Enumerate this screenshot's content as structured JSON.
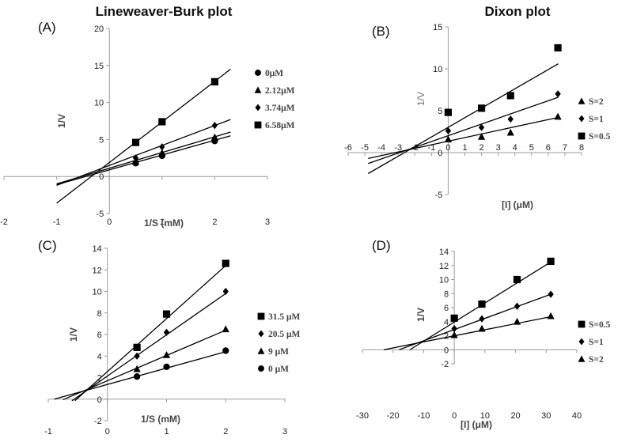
{
  "titles": {
    "left": "Lineweaver-Burk plot",
    "right": "Dixon plot"
  },
  "chart_data": [
    {
      "id": "A",
      "tag": "(A)",
      "type": "scatter",
      "xlabel": "1/S (mM)",
      "ylabel": "1/V",
      "ylabel_style": "bold",
      "xlim": [
        -2,
        3
      ],
      "ylim": [
        -5,
        20
      ],
      "xticks": [
        -2,
        -1,
        0,
        1,
        2,
        3
      ],
      "yticks": [
        -5,
        0,
        5,
        10,
        15,
        20
      ],
      "legend_position": "right",
      "series": [
        {
          "name": "0μM",
          "marker": "circle",
          "x": [
            0.5,
            1,
            2
          ],
          "y": [
            1.8,
            2.8,
            4.8
          ],
          "line": {
            "x": [
              -1,
              2.3
            ],
            "y": [
              -1.1,
              5.5
            ]
          }
        },
        {
          "name": "2.12μM",
          "marker": "triangle",
          "x": [
            0.5,
            1,
            2
          ],
          "y": [
            2.0,
            3.2,
            5.3
          ],
          "line": {
            "x": [
              -1,
              2.3
            ],
            "y": [
              -1.0,
              6.0
            ]
          }
        },
        {
          "name": "3.74μM",
          "marker": "diamond",
          "x": [
            0.5,
            1,
            2
          ],
          "y": [
            2.5,
            4.0,
            6.9
          ],
          "line": {
            "x": [
              -1,
              2.3
            ],
            "y": [
              -1.2,
              7.7
            ]
          }
        },
        {
          "name": "6.58μM",
          "marker": "square",
          "x": [
            0.5,
            1,
            2
          ],
          "y": [
            4.6,
            7.4,
            12.8
          ],
          "line": {
            "x": [
              -1,
              2.3
            ],
            "y": [
              -3.6,
              14.5
            ]
          }
        }
      ]
    },
    {
      "id": "B",
      "tag": "(B)",
      "type": "scatter",
      "xlabel": "[I] (μM)",
      "ylabel": "1/V",
      "ylabel_style": "light",
      "xlim": [
        -6,
        8
      ],
      "ylim": [
        -5,
        15
      ],
      "xticks": [
        -6,
        -5,
        -4,
        -3,
        -2,
        -1,
        0,
        1,
        2,
        3,
        4,
        5,
        6,
        7,
        8
      ],
      "yticks": [
        -5,
        0,
        5,
        10,
        15
      ],
      "legend_position": "right",
      "series": [
        {
          "name": "S=2",
          "marker": "triangle",
          "x": [
            0,
            2,
            3.74,
            6.58
          ],
          "y": [
            1.6,
            1.9,
            2.4,
            4.3
          ],
          "line": {
            "x": [
              -4.8,
              6.6
            ],
            "y": [
              -0.7,
              4.2
            ]
          }
        },
        {
          "name": "S=1",
          "marker": "diamond",
          "x": [
            0,
            2,
            3.74,
            6.58
          ],
          "y": [
            2.6,
            3.0,
            4.0,
            7.0
          ],
          "line": {
            "x": [
              -4.8,
              6.6
            ],
            "y": [
              -1.3,
              6.6
            ]
          }
        },
        {
          "name": "S=0.5",
          "marker": "square",
          "x": [
            0,
            2,
            3.74,
            6.58
          ],
          "y": [
            4.8,
            5.3,
            6.8,
            12.5
          ],
          "line": {
            "x": [
              -4.8,
              6.6
            ],
            "y": [
              -2.5,
              10.6
            ]
          }
        }
      ]
    },
    {
      "id": "C",
      "tag": "(C)",
      "type": "scatter",
      "xlabel": "1/S (mM)",
      "ylabel": "1/V",
      "ylabel_style": "bold",
      "xlim": [
        -1,
        3
      ],
      "ylim": [
        -2,
        14
      ],
      "xticks": [
        -1,
        0,
        1,
        2,
        3
      ],
      "yticks": [
        -2,
        0,
        2,
        4,
        6,
        8,
        10,
        12,
        14
      ],
      "legend_position": "right",
      "series": [
        {
          "name": "31.5 μM",
          "marker": "square",
          "x": [
            0.5,
            1,
            2
          ],
          "y": [
            4.8,
            7.9,
            12.6
          ],
          "line": {
            "x": [
              -0.55,
              2
            ],
            "y": [
              -0.15,
              12.4
            ]
          }
        },
        {
          "name": "20.5 μM",
          "marker": "diamond",
          "x": [
            0.5,
            1,
            2
          ],
          "y": [
            4.0,
            6.2,
            10.0
          ],
          "line": {
            "x": [
              -0.6,
              2
            ],
            "y": [
              -0.15,
              9.8
            ]
          }
        },
        {
          "name": "9 μM",
          "marker": "triangle",
          "x": [
            0.5,
            1,
            2
          ],
          "y": [
            2.8,
            4.1,
            6.5
          ],
          "line": {
            "x": [
              -0.75,
              2
            ],
            "y": [
              -0.05,
              6.4
            ]
          }
        },
        {
          "name": "0 μM",
          "marker": "circle",
          "x": [
            0.5,
            1,
            2
          ],
          "y": [
            2.1,
            3.0,
            4.5
          ],
          "line": {
            "x": [
              -0.9,
              2
            ],
            "y": [
              0.0,
              4.4
            ]
          }
        }
      ]
    },
    {
      "id": "D",
      "tag": "(D)",
      "type": "scatter",
      "xlabel": "[I] (μM)",
      "ylabel": "1/V",
      "ylabel_style": "bold",
      "xlim": [
        -30,
        40
      ],
      "ylim": [
        -2,
        14
      ],
      "xticks": [
        -30,
        -20,
        -10,
        0,
        10,
        20,
        30,
        40
      ],
      "yticks": [
        -2,
        0,
        2,
        4,
        6,
        8,
        10,
        12,
        14
      ],
      "legend_position": "right",
      "series": [
        {
          "name": "S=0.5",
          "marker": "square",
          "x": [
            0,
            9,
            20.5,
            31.5
          ],
          "y": [
            4.5,
            6.5,
            10.0,
            12.6
          ],
          "line": {
            "x": [
              -14.5,
              31.5
            ],
            "y": [
              0.0,
              12.5
            ]
          }
        },
        {
          "name": "S=1",
          "marker": "diamond",
          "x": [
            0,
            9,
            20.5,
            31.5
          ],
          "y": [
            3.0,
            4.4,
            6.2,
            7.9
          ],
          "line": {
            "x": [
              -18,
              31.5
            ],
            "y": [
              0.0,
              7.9
            ]
          }
        },
        {
          "name": "S=2",
          "marker": "triangle",
          "x": [
            0,
            9,
            20.5,
            31.5
          ],
          "y": [
            2.1,
            3.0,
            4.0,
            4.8
          ],
          "line": {
            "x": [
              -23,
              31.5
            ],
            "y": [
              0.0,
              4.7
            ]
          }
        }
      ]
    }
  ]
}
